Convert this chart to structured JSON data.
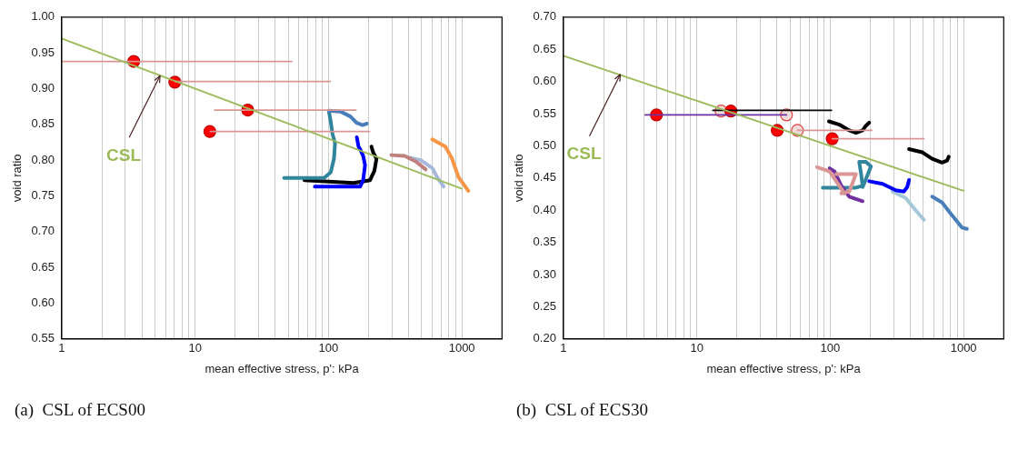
{
  "chart_data": [
    {
      "type": "line",
      "title": "(a)  CSL of ECS00",
      "xlabel": "mean effective stress, p': kPa",
      "ylabel": "void ratio",
      "log": "x",
      "grid": "x",
      "legend": false,
      "xlim": [
        1,
        2000
      ],
      "ylim": [
        0.55,
        1.0
      ],
      "xticks": [
        1,
        {
          "value": 2,
          "label": null
        },
        {
          "value": 3,
          "label": null
        },
        {
          "value": 4,
          "label": null
        },
        {
          "value": 5,
          "label": null
        },
        {
          "value": 6,
          "label": null
        },
        {
          "value": 7,
          "label": null
        },
        {
          "value": 8,
          "label": null
        },
        {
          "value": 9,
          "label": null
        },
        10,
        {
          "value": 20,
          "label": null
        },
        {
          "value": 30,
          "label": null
        },
        {
          "value": 40,
          "label": null
        },
        {
          "value": 50,
          "label": null
        },
        {
          "value": 60,
          "label": null
        },
        {
          "value": 70,
          "label": null
        },
        {
          "value": 80,
          "label": null
        },
        {
          "value": 90,
          "label": null
        },
        100,
        {
          "value": 200,
          "label": null
        },
        {
          "value": 300,
          "label": null
        },
        {
          "value": 400,
          "label": null
        },
        {
          "value": 500,
          "label": null
        },
        {
          "value": 600,
          "label": null
        },
        {
          "value": 700,
          "label": null
        },
        {
          "value": 800,
          "label": null
        },
        {
          "value": 900,
          "label": null
        },
        1000
      ],
      "yticks": [
        {
          "value": 0.55,
          "label": "0.55"
        },
        {
          "value": 0.6,
          "label": "0.60"
        },
        {
          "value": 0.65,
          "label": "0.65"
        },
        {
          "value": 0.7,
          "label": "0.70"
        },
        {
          "value": 0.75,
          "label": "0.75"
        },
        {
          "value": 0.8,
          "label": "0.80"
        },
        {
          "value": 0.85,
          "label": "0.85"
        },
        {
          "value": 0.9,
          "label": "0.90"
        },
        {
          "value": 0.95,
          "label": "0.95"
        },
        {
          "value": 1.0,
          "label": "1.00"
        }
      ],
      "annotations": [
        {
          "text": "CSL",
          "x": 5.46,
          "y": 0.918
        }
      ],
      "series": [
        {
          "type": "line",
          "color": "#9bbb59",
          "x": [
            1,
            1000
          ],
          "values": [
            0.97,
            0.76
          ]
        },
        {
          "type": "line",
          "color": "#d99694",
          "x": [
            1,
            53
          ],
          "values": [
            0.938,
            0.938
          ]
        },
        {
          "type": "line",
          "color": "#d99694",
          "x": [
            7.05,
            103
          ],
          "values": [
            0.91,
            0.91
          ]
        },
        {
          "type": "line",
          "color": "#d99694",
          "x": [
            14,
            161
          ],
          "values": [
            0.87,
            0.87
          ]
        },
        {
          "type": "line",
          "color": "#d99694",
          "x": [
            13,
            203
          ],
          "values": [
            0.84,
            0.84
          ]
        },
        {
          "type": "line",
          "color": "#4a7ebb",
          "x": [
            101,
            123,
            146,
            163,
            180,
            194
          ],
          "values": [
            0.869,
            0.868,
            0.861,
            0.852,
            0.849,
            0.851
          ]
        },
        {
          "type": "line",
          "color": "#31859c",
          "x": [
            46.5,
            92.7,
            104,
            110,
            112,
            107,
            104,
            101
          ],
          "values": [
            0.775,
            0.775,
            0.783,
            0.802,
            0.824,
            0.837,
            0.854,
            0.867
          ]
        },
        {
          "type": "line",
          "color": "#0000ff",
          "x": [
            79,
            173,
            182,
            188,
            182,
            173,
            168,
            163
          ],
          "values": [
            0.763,
            0.763,
            0.772,
            0.793,
            0.806,
            0.815,
            0.819,
            0.832
          ]
        },
        {
          "type": "line",
          "color": "#000000",
          "x": [
            66,
            154,
            205,
            221,
            229,
            216,
            210
          ],
          "values": [
            0.772,
            0.768,
            0.772,
            0.785,
            0.802,
            0.811,
            0.819
          ]
        },
        {
          "type": "line",
          "color": "#c0807d",
          "x": [
            296,
            372,
            453,
            536
          ],
          "values": [
            0.807,
            0.806,
            0.798,
            0.787
          ]
        },
        {
          "type": "line",
          "color": "#a6b9db",
          "x": [
            393,
            492,
            600,
            653,
            731
          ],
          "values": [
            0.804,
            0.8,
            0.789,
            0.776,
            0.763
          ]
        },
        {
          "type": "line",
          "color": "#f79646",
          "x": [
            600,
            753,
            844,
            945,
            1119
          ],
          "values": [
            0.829,
            0.819,
            0.802,
            0.776,
            0.757
          ]
        },
        {
          "type": "scatter",
          "marker": "circle",
          "color": "#ff0000",
          "x": [
            3.47,
            7.05,
            24.8,
            12.9
          ],
          "values": [
            0.938,
            0.909,
            0.87,
            0.84
          ]
        }
      ]
    },
    {
      "type": "line",
      "title": "(b)  CSL of ECS30",
      "xlabel": "mean effective stress, p': kPa",
      "ylabel": "void ratio",
      "log": "x",
      "grid": "x",
      "legend": false,
      "xlim": [
        1,
        2000
      ],
      "ylim": [
        0.2,
        0.7
      ],
      "xticks": [
        1,
        {
          "value": 2,
          "label": null
        },
        {
          "value": 3,
          "label": null
        },
        {
          "value": 4,
          "label": null
        },
        {
          "value": 5,
          "label": null
        },
        {
          "value": 6,
          "label": null
        },
        {
          "value": 7,
          "label": null
        },
        {
          "value": 8,
          "label": null
        },
        {
          "value": 9,
          "label": null
        },
        10,
        {
          "value": 20,
          "label": null
        },
        {
          "value": 30,
          "label": null
        },
        {
          "value": 40,
          "label": null
        },
        {
          "value": 50,
          "label": null
        },
        {
          "value": 60,
          "label": null
        },
        {
          "value": 70,
          "label": null
        },
        {
          "value": 80,
          "label": null
        },
        {
          "value": 90,
          "label": null
        },
        100,
        {
          "value": 200,
          "label": null
        },
        {
          "value": 300,
          "label": null
        },
        {
          "value": 400,
          "label": null
        },
        {
          "value": 500,
          "label": null
        },
        {
          "value": 600,
          "label": null
        },
        {
          "value": 700,
          "label": null
        },
        {
          "value": 800,
          "label": null
        },
        {
          "value": 900,
          "label": null
        },
        1000
      ],
      "yticks": [
        {
          "value": 0.2,
          "label": "0.20"
        },
        {
          "value": 0.25,
          "label": "0.25"
        },
        {
          "value": 0.3,
          "label": "0.30"
        },
        {
          "value": 0.35,
          "label": "0.35"
        },
        {
          "value": 0.4,
          "label": "0.40"
        },
        {
          "value": 0.45,
          "label": "0.45"
        },
        {
          "value": 0.5,
          "label": "0.50"
        },
        {
          "value": 0.55,
          "label": "0.55"
        },
        {
          "value": 0.6,
          "label": "0.60"
        },
        {
          "value": 0.65,
          "label": "0.65"
        },
        {
          "value": 0.7,
          "label": "0.70"
        }
      ],
      "annotations": [
        {
          "text": "CSL",
          "x": 2.67,
          "y": 0.611
        }
      ],
      "series": [
        {
          "type": "line",
          "color": "#9bbb59",
          "x": [
            1,
            1000
          ],
          "values": [
            0.64,
            0.43
          ]
        },
        {
          "type": "line",
          "color": "#7030a0",
          "x": [
            4.1,
            47
          ],
          "values": [
            0.548,
            0.548
          ]
        },
        {
          "type": "line",
          "color": "#000000",
          "x": [
            13.2,
            102
          ],
          "values": [
            0.555,
            0.555
          ]
        },
        {
          "type": "line",
          "color": "#d99694",
          "x": [
            56.8,
            205
          ],
          "values": [
            0.524,
            0.524
          ]
        },
        {
          "type": "line",
          "color": "#d99694",
          "x": [
            103.5,
            504
          ],
          "values": [
            0.511,
            0.511
          ]
        },
        {
          "type": "line",
          "color": "#000000",
          "x": [
            97.8,
            117,
            139,
            156,
            175,
            185,
            196
          ],
          "values": [
            0.538,
            0.533,
            0.524,
            0.52,
            0.524,
            0.531,
            0.536
          ]
        },
        {
          "type": "line",
          "color": "#000000",
          "x": [
            390,
            490,
            581,
            690,
            751,
            773
          ],
          "values": [
            0.495,
            0.49,
            0.48,
            0.474,
            0.477,
            0.483
          ]
        },
        {
          "type": "line",
          "color": "#da9694",
          "x": [
            79.6,
            98.9,
            117,
            128
          ],
          "values": [
            0.467,
            0.46,
            0.438,
            0.426
          ]
        },
        {
          "type": "line",
          "color": "#da9694",
          "x": [
            111,
            156,
            139,
            121
          ],
          "values": [
            0.456,
            0.456,
            0.429,
            0.426
          ]
        },
        {
          "type": "line",
          "color": "#7030a0",
          "x": [
            98.9,
            108,
            121,
            139,
            175
          ],
          "values": [
            0.465,
            0.46,
            0.438,
            0.421,
            0.414
          ]
        },
        {
          "type": "line",
          "color": "#31859c",
          "x": [
            88,
            156,
            175,
            170,
            165,
            185,
            202,
            185,
            175
          ],
          "values": [
            0.435,
            0.435,
            0.438,
            0.458,
            0.475,
            0.475,
            0.468,
            0.448,
            0.436
          ]
        },
        {
          "type": "line",
          "color": "#0000ff",
          "x": [
            196,
            247,
            310,
            357,
            378,
            390
          ],
          "values": [
            0.445,
            0.441,
            0.431,
            0.429,
            0.436,
            0.447
          ]
        },
        {
          "type": "line",
          "color": "#a5c8d8",
          "x": [
            293,
            368,
            437,
            504
          ],
          "values": [
            0.429,
            0.419,
            0.4,
            0.385
          ]
        },
        {
          "type": "line",
          "color": "#4a7ebb",
          "x": [
            581,
            690,
            819,
            972,
            1059
          ],
          "values": [
            0.421,
            0.412,
            0.392,
            0.373,
            0.371
          ]
        },
        {
          "type": "scatter",
          "marker": "circle",
          "color": "#ff0000",
          "x": [
            4.98,
            18.0,
            40.1,
            103.5
          ],
          "values": [
            0.548,
            0.554,
            0.524,
            0.511
          ]
        },
        {
          "type": "scatter",
          "marker": "circle",
          "color": "#f2dcdb",
          "x": [
            15.2,
            47,
            56.8
          ],
          "values": [
            0.554,
            0.548,
            0.524
          ]
        }
      ]
    }
  ]
}
